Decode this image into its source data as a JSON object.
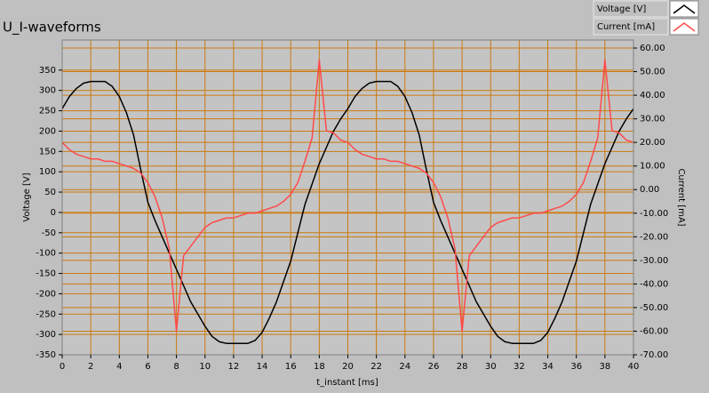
{
  "chart_data": {
    "type": "line",
    "title": "U_I-waveforms",
    "x_label": "t_instant [ms]",
    "y_label": "Voltage [V]",
    "y2_label": "Current [mA]",
    "x": [
      0,
      0.5,
      1,
      1.5,
      2,
      2.5,
      3,
      3.5,
      4,
      4.5,
      5,
      5.5,
      6,
      6.5,
      7,
      7.5,
      8,
      8.5,
      9,
      9.5,
      10,
      10.5,
      11,
      11.5,
      12,
      12.5,
      13,
      13.5,
      14,
      14.5,
      15,
      15.5,
      16,
      16.5,
      17,
      17.5,
      18,
      18.5,
      19,
      19.5,
      20,
      20.5,
      21,
      21.5,
      22,
      22.5,
      23,
      23.5,
      24,
      24.5,
      25,
      25.5,
      26,
      26.5,
      27,
      27.5,
      28,
      28.5,
      29,
      29.5,
      30,
      30.5,
      31,
      31.5,
      32,
      32.5,
      33,
      33.5,
      34,
      34.5,
      35,
      35.5,
      36,
      36.5,
      37,
      37.5,
      38,
      38.5,
      39,
      39.5,
      40
    ],
    "series": [
      {
        "name": "Voltage [V]",
        "color": "#000000",
        "values": [
          255,
          285,
          305,
          318,
          322,
          322,
          322,
          310,
          285,
          245,
          190,
          105,
          25,
          -20,
          -60,
          -100,
          -140,
          -180,
          -220,
          -250,
          -280,
          -305,
          -318,
          -322,
          -322,
          -322,
          -322,
          -315,
          -295,
          -260,
          -220,
          -170,
          -120,
          -50,
          20,
          70,
          120,
          160,
          200,
          230,
          255,
          285,
          305,
          318,
          322,
          322,
          322,
          310,
          285,
          245,
          190,
          105,
          25,
          -20,
          -60,
          -100,
          -140,
          -180,
          -220,
          -250,
          -280,
          -305,
          -318,
          -322,
          -322,
          -322,
          -322,
          -315,
          -295,
          -260,
          -220,
          -170,
          -120,
          -50,
          20,
          70,
          120,
          160,
          200,
          230,
          255
        ]
      },
      {
        "name": "Current [mA]",
        "color": "#ff4a4a",
        "axis": "y2",
        "values": [
          20,
          17,
          15,
          14,
          13,
          13,
          12,
          12,
          11,
          10,
          9,
          7,
          3,
          -3,
          -12,
          -25,
          -60,
          -28,
          -24,
          -20,
          -16,
          -14,
          -13,
          -12,
          -12,
          -11,
          -10,
          -10,
          -9,
          -8,
          -7,
          -5,
          -2,
          3,
          12,
          22,
          55,
          25,
          24,
          21,
          20,
          17,
          15,
          14,
          13,
          13,
          12,
          12,
          11,
          10,
          9,
          7,
          3,
          -3,
          -12,
          -25,
          -60,
          -28,
          -24,
          -20,
          -16,
          -14,
          -13,
          -12,
          -12,
          -11,
          -10,
          -10,
          -9,
          -8,
          -7,
          -5,
          -2,
          3,
          12,
          22,
          55,
          25,
          24,
          21,
          20
        ]
      }
    ],
    "xlim": [
      0,
      40
    ],
    "xticks": [
      0,
      2,
      4,
      6,
      8,
      10,
      12,
      14,
      16,
      18,
      20,
      22,
      24,
      26,
      28,
      30,
      32,
      34,
      36,
      38,
      40
    ],
    "ylim": [
      -350,
      424
    ],
    "yticks": [
      -350,
      -300,
      -250,
      -200,
      -150,
      -100,
      -50,
      0,
      50,
      100,
      150,
      200,
      250,
      300,
      350
    ],
    "y2lim": [
      -70,
      63.4
    ],
    "y2ticks": [
      {
        "value": 60,
        "label": "60.00"
      },
      {
        "value": 50,
        "label": "50.00"
      },
      {
        "value": 40,
        "label": "40.00"
      },
      {
        "value": 30,
        "label": "30.00"
      },
      {
        "value": 20,
        "label": "20.00"
      },
      {
        "value": 10,
        "label": "10.00"
      },
      {
        "value": 0,
        "label": "0.00"
      },
      {
        "value": -10,
        "label": "-10.00"
      },
      {
        "value": -20,
        "label": "-20.00"
      },
      {
        "value": -30,
        "label": "-30.00"
      },
      {
        "value": -40,
        "label": "-40.00"
      },
      {
        "value": -50,
        "label": "-50.00"
      },
      {
        "value": -60,
        "label": "-60.00"
      },
      {
        "value": -70,
        "label": "-70.00"
      }
    ],
    "grid": true,
    "grid_color": "#cc7a10",
    "legend_position": "top-right"
  }
}
